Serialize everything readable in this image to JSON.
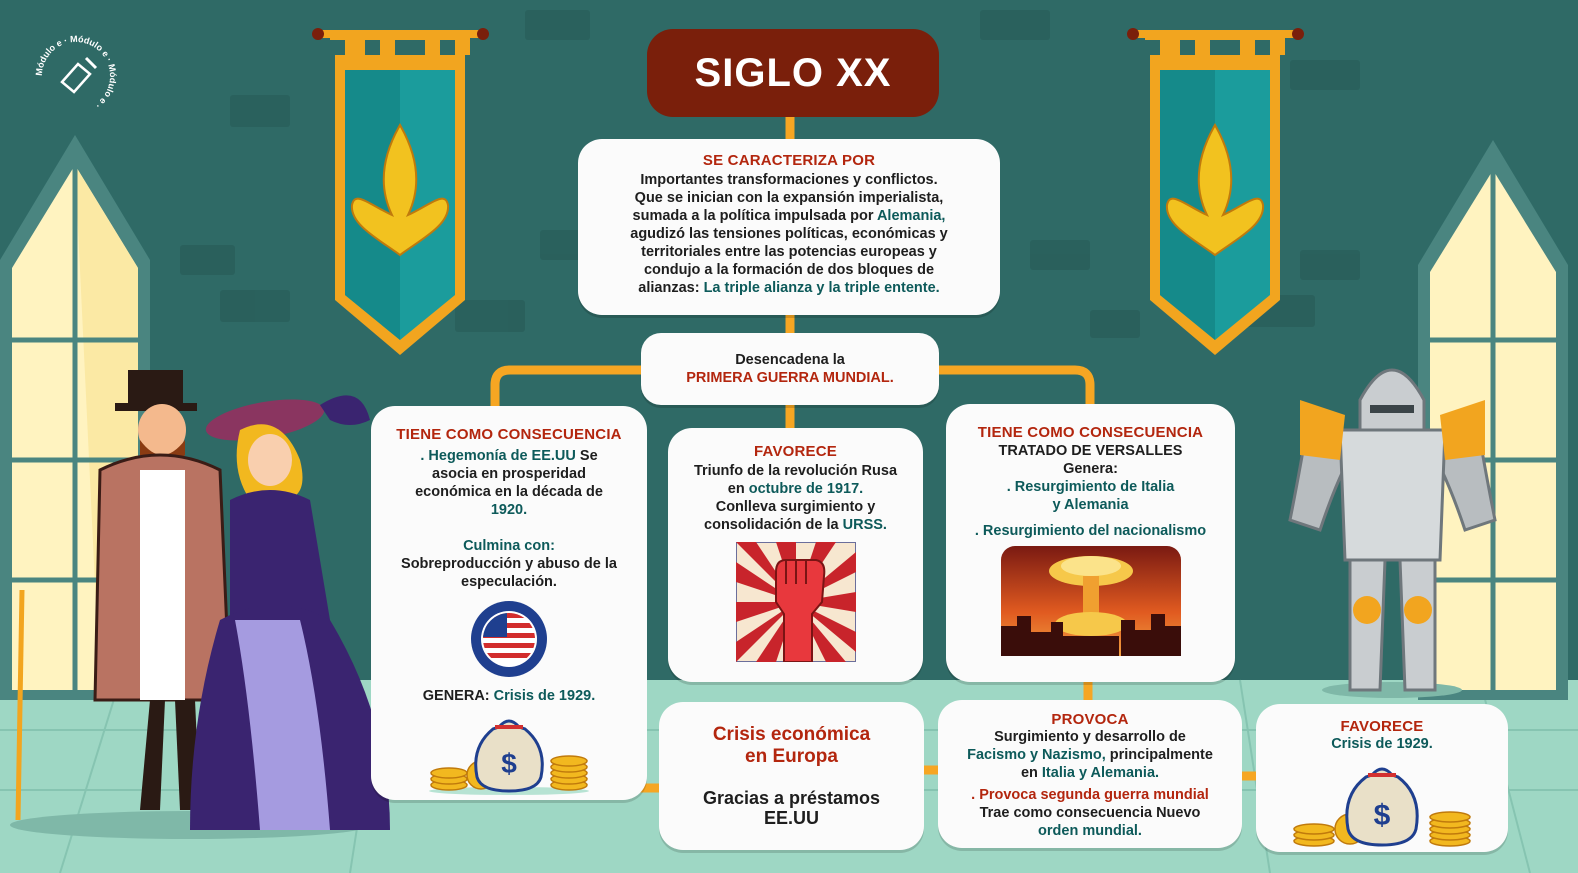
{
  "logo": {
    "text": "Módulo e · Módulo e · Módulo e ·"
  },
  "title": "SIGLO XX",
  "characterize": {
    "header": "SE CARACTERIZA POR",
    "line1": "Importantes transformaciones y conflictos.",
    "line2": "Que se inician con la expansión imperialista,",
    "line3a": "sumada a la política impulsada por ",
    "line3b": "Alemania,",
    "line4": "agudizó las tensiones políticas, económicas y",
    "line5": "territoriales entre las potencias europeas y",
    "line6": "condujo a la formación de dos bloques de",
    "line7a": "alianzas: ",
    "line7b": "La triple alianza y la triple entente."
  },
  "trigger": {
    "line1": "Desencadena la",
    "line2": "PRIMERA GUERRA MUNDIAL."
  },
  "left_consequence": {
    "header": "TIENE COMO CONSECUENCIA",
    "l1a": ". Hegemonía de EE.UU",
    "l1b": " Se",
    "l2": "asocia en prosperidad",
    "l3": "económica en la década de",
    "l4": "1920.",
    "culmina": "Culmina con:",
    "l5": "Sobreproducción y abuso de la",
    "l6": "especulación.",
    "genera_a": "GENERA: ",
    "genera_b": "Crisis de 1929."
  },
  "middle_favors": {
    "header": "FAVORECE",
    "l1": "Triunfo de la revolución Rusa",
    "l2a": "en ",
    "l2b": "octubre de 1917.",
    "l3": "Conlleva surgimiento y",
    "l4a": "consolidación de la ",
    "l4b": "URSS."
  },
  "right_consequence": {
    "header": "TIENE COMO CONSECUENCIA",
    "l1": "TRATADO DE VERSALLES",
    "l2": "Genera:",
    "l3": ". Resurgimiento de Italia",
    "l4": "y Alemania",
    "l5": ". Resurgimiento del nacionalismo"
  },
  "crisis_europe": {
    "l1": "Crisis económica",
    "l2": "en Europa",
    "l3": "Gracias a préstamos",
    "l4": "EE.UU"
  },
  "provoca": {
    "header": "PROVOCA",
    "l1": "Surgimiento y desarrollo de",
    "l2a": "Facismo y Nazismo,",
    "l2b": " principalmente",
    "l3a": "en ",
    "l3b": "Italia y Alemania.",
    "l4": ". Provoca segunda guerra mundial",
    "l5": "Trae como consecuencia Nuevo",
    "l6": "orden mundial."
  },
  "favors_right": {
    "header": "FAVORECE",
    "l1": "Crisis de 1929."
  },
  "colors": {
    "wall": "#2f6a66",
    "accent_orange": "#f6a623",
    "title_bg": "#7a1f0b",
    "header_red": "#b3260e",
    "highlight_teal": "#0d5a5a"
  },
  "icons": [
    "pen-logo-icon",
    "banner-fleur-de-lis-icon",
    "usa-flag-badge-icon",
    "raised-fist-icon",
    "nuclear-explosion-icon",
    "money-bag-icon",
    "knight-armor-icon",
    "victorian-couple-icon",
    "castle-window-icon"
  ]
}
